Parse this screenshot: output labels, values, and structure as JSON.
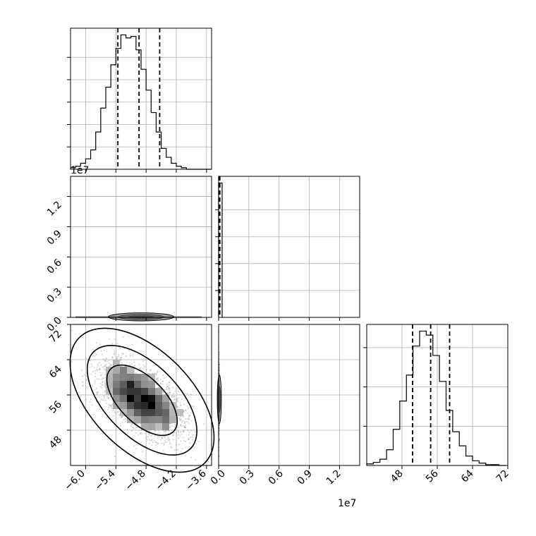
{
  "chart_data": {
    "type": "corner",
    "colors": {
      "line": "#000000",
      "grid": "#b0b0b0",
      "points": "#808080",
      "background": "#ffffff"
    },
    "grid": true,
    "parameters": [
      {
        "range": [
          -6.3,
          -3.5
        ],
        "ticks": [
          -6.0,
          -5.4,
          -4.8,
          -4.2,
          -3.6
        ],
        "tick_labels": [
          "−6.0",
          "−5.4",
          "−4.8",
          "−4.2",
          "−3.6"
        ],
        "offset_label": ""
      },
      {
        "range": [
          0,
          1.4
        ],
        "ticks": [
          0.0,
          0.3,
          0.6,
          0.9,
          1.2
        ],
        "tick_labels": [
          "0.0",
          "0.3",
          "0.6",
          "0.9",
          "1.2"
        ],
        "offset_label": "1e7"
      },
      {
        "range": [
          40,
          72
        ],
        "ticks": [
          48,
          56,
          64,
          72
        ],
        "tick_labels": [
          "48",
          "56",
          "64",
          "72"
        ],
        "offset_label": ""
      }
    ],
    "x_axis": {
      "p0_tick_labels": [
        "−6.0",
        "−5.4",
        "−4.8",
        "−4.2",
        "−3.6"
      ],
      "p1_ticks": [
        0.0,
        0.3,
        0.6,
        0.9,
        1.2
      ],
      "p1_tick_labels": [
        "0.0",
        "0.3",
        "0.6",
        "0.9",
        "1.2"
      ],
      "p1_offset_label": "1e7",
      "p2_tick_labels": [
        "48",
        "56",
        "64",
        "72"
      ]
    },
    "y_axis": {
      "row1_tick_labels": [
        "0.0",
        "0.3",
        "0.6",
        "0.9",
        "1.2"
      ],
      "row1_offset_label": "1e7",
      "row2_tick_labels": [
        "48",
        "56",
        "64",
        "72"
      ]
    },
    "marginals": [
      {
        "param": 0,
        "type": "histogram-step",
        "edges": [
          -6.3,
          -6.2,
          -6.1,
          -6.0,
          -5.9,
          -5.8,
          -5.7,
          -5.6,
          -5.5,
          -5.4,
          -5.3,
          -5.2,
          -5.1,
          -5.0,
          -4.9,
          -4.8,
          -4.7,
          -4.6,
          -4.5,
          -4.4,
          -4.3,
          -4.2,
          -4.1,
          -4.0,
          -3.9,
          -3.8,
          -3.7,
          -3.6,
          -3.5
        ],
        "counts": [
          1,
          2,
          4,
          7,
          13,
          25,
          41,
          55,
          70,
          81,
          90,
          88,
          89,
          80,
          67,
          53,
          38,
          25,
          14,
          8,
          4,
          2,
          1,
          0,
          0,
          0,
          0,
          0
        ],
        "y_ticks": [
          15,
          30,
          45,
          60,
          75
        ],
        "quantiles": [
          -5.36,
          -4.94,
          -4.53
        ]
      },
      {
        "param": 1,
        "type": "histogram-step",
        "edges": [
          0.0,
          0.035
        ],
        "counts": [
          100
        ],
        "y_ticks": [
          20,
          40,
          60,
          80
        ],
        "quantiles": [
          0.002,
          0.006,
          0.012
        ]
      },
      {
        "param": 2,
        "type": "histogram-step",
        "edges": [
          40,
          41.5,
          43,
          44.5,
          46,
          47.5,
          49,
          50.5,
          52,
          53.5,
          55,
          56.5,
          58,
          59.5,
          61,
          62.5,
          64,
          65.5,
          67,
          68.5,
          70,
          71.5
        ],
        "counts": [
          2,
          4,
          8,
          20,
          46,
          82,
          115,
          152,
          171,
          166,
          140,
          107,
          70,
          43,
          25,
          12,
          6,
          3,
          1,
          1,
          0
        ],
        "y_ticks": [
          50,
          100,
          150
        ],
        "quantiles": [
          50.4,
          54.5,
          58.8
        ]
      }
    ],
    "joints": [
      {
        "x_param": 0,
        "y_param": 1,
        "contours": [
          {
            "cx": -4.9,
            "cy": 0.003,
            "rx": 0.25,
            "ry": 0.012,
            "rot": 0
          },
          {
            "cx": -4.9,
            "cy": 0.004,
            "rx": 0.45,
            "ry": 0.025,
            "rot": 0
          },
          {
            "cx": -4.9,
            "cy": 0.005,
            "rx": 0.65,
            "ry": 0.04,
            "rot": 0
          }
        ],
        "band": {
          "x0": -6.2,
          "x1": -3.7,
          "y": 0.003
        }
      },
      {
        "x_param": 0,
        "y_param": 2,
        "center": [
          -4.9,
          55.0
        ],
        "contours": [
          {
            "cx": -4.88,
            "cy": 54.8,
            "rx": 0.55,
            "ry": 0.28,
            "rot": 0.45
          },
          {
            "cx": -4.88,
            "cy": 54.8,
            "rx": 0.85,
            "ry": 0.45,
            "rot": 0.45
          },
          {
            "cx": -4.88,
            "cy": 54.8,
            "rx": 1.1,
            "ry": 0.62,
            "rot": 0.45
          }
        ]
      },
      {
        "x_param": 1,
        "y_param": 2,
        "contours": [
          {
            "cx": 0.005,
            "cy": 55.0,
            "rx": 0.012,
            "ry": 3.0,
            "rot": 0
          },
          {
            "cx": 0.007,
            "cy": 55.0,
            "rx": 0.02,
            "ry": 5.5,
            "rot": 0
          }
        ]
      }
    ]
  }
}
